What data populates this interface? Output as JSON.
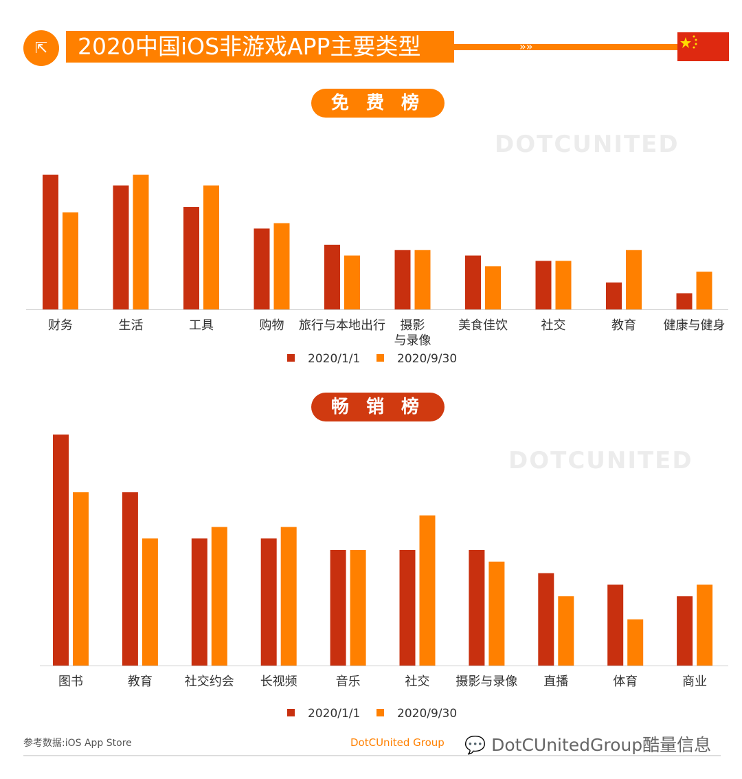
{
  "header": {
    "title": "2020中国iOS非游戏APP主要类型",
    "icon": "share-icon",
    "flag": "china-flag"
  },
  "colors": {
    "series1": "#c8300f",
    "series2": "#ff8000"
  },
  "chart_data": [
    {
      "type": "bar",
      "title": "免 费 榜",
      "categories": [
        "财务",
        "生活",
        "工具",
        "购物",
        "旅行与本地出行",
        "摄影\n与录像",
        "美食佳饮",
        "社交",
        "教育",
        "健康与健身"
      ],
      "series": [
        {
          "name": "2020/1/1",
          "values": [
            25,
            23,
            19,
            15,
            12,
            11,
            10,
            9,
            5,
            3
          ]
        },
        {
          "name": "2020/9/30",
          "values": [
            18,
            25,
            23,
            16,
            10,
            11,
            8,
            9,
            11,
            7
          ]
        }
      ],
      "ylim": [
        0,
        25
      ],
      "grid": false,
      "legend": "bottom"
    },
    {
      "type": "bar",
      "title": "畅 销 榜",
      "categories": [
        "图书",
        "教育",
        "社交约会",
        "长视频",
        "音乐",
        "社交",
        "摄影与录像",
        "直播",
        "体育",
        "商业"
      ],
      "series": [
        {
          "name": "2020/1/1",
          "values": [
            20,
            15,
            11,
            11,
            10,
            10,
            10,
            8,
            7,
            6
          ]
        },
        {
          "name": "2020/9/30",
          "values": [
            15,
            11,
            12,
            12,
            10,
            13,
            9,
            6,
            4,
            7
          ]
        }
      ],
      "ylim": [
        0,
        20
      ],
      "grid": false,
      "legend": "bottom"
    }
  ],
  "footer": {
    "source": "参考数据:iOS App Store",
    "brand": "DotCUnitedGroup酷量信息",
    "brand_overlay": "DotCUnited Group",
    "brand_icon": "wechat-icon"
  },
  "watermark": "DOTCUNITED"
}
